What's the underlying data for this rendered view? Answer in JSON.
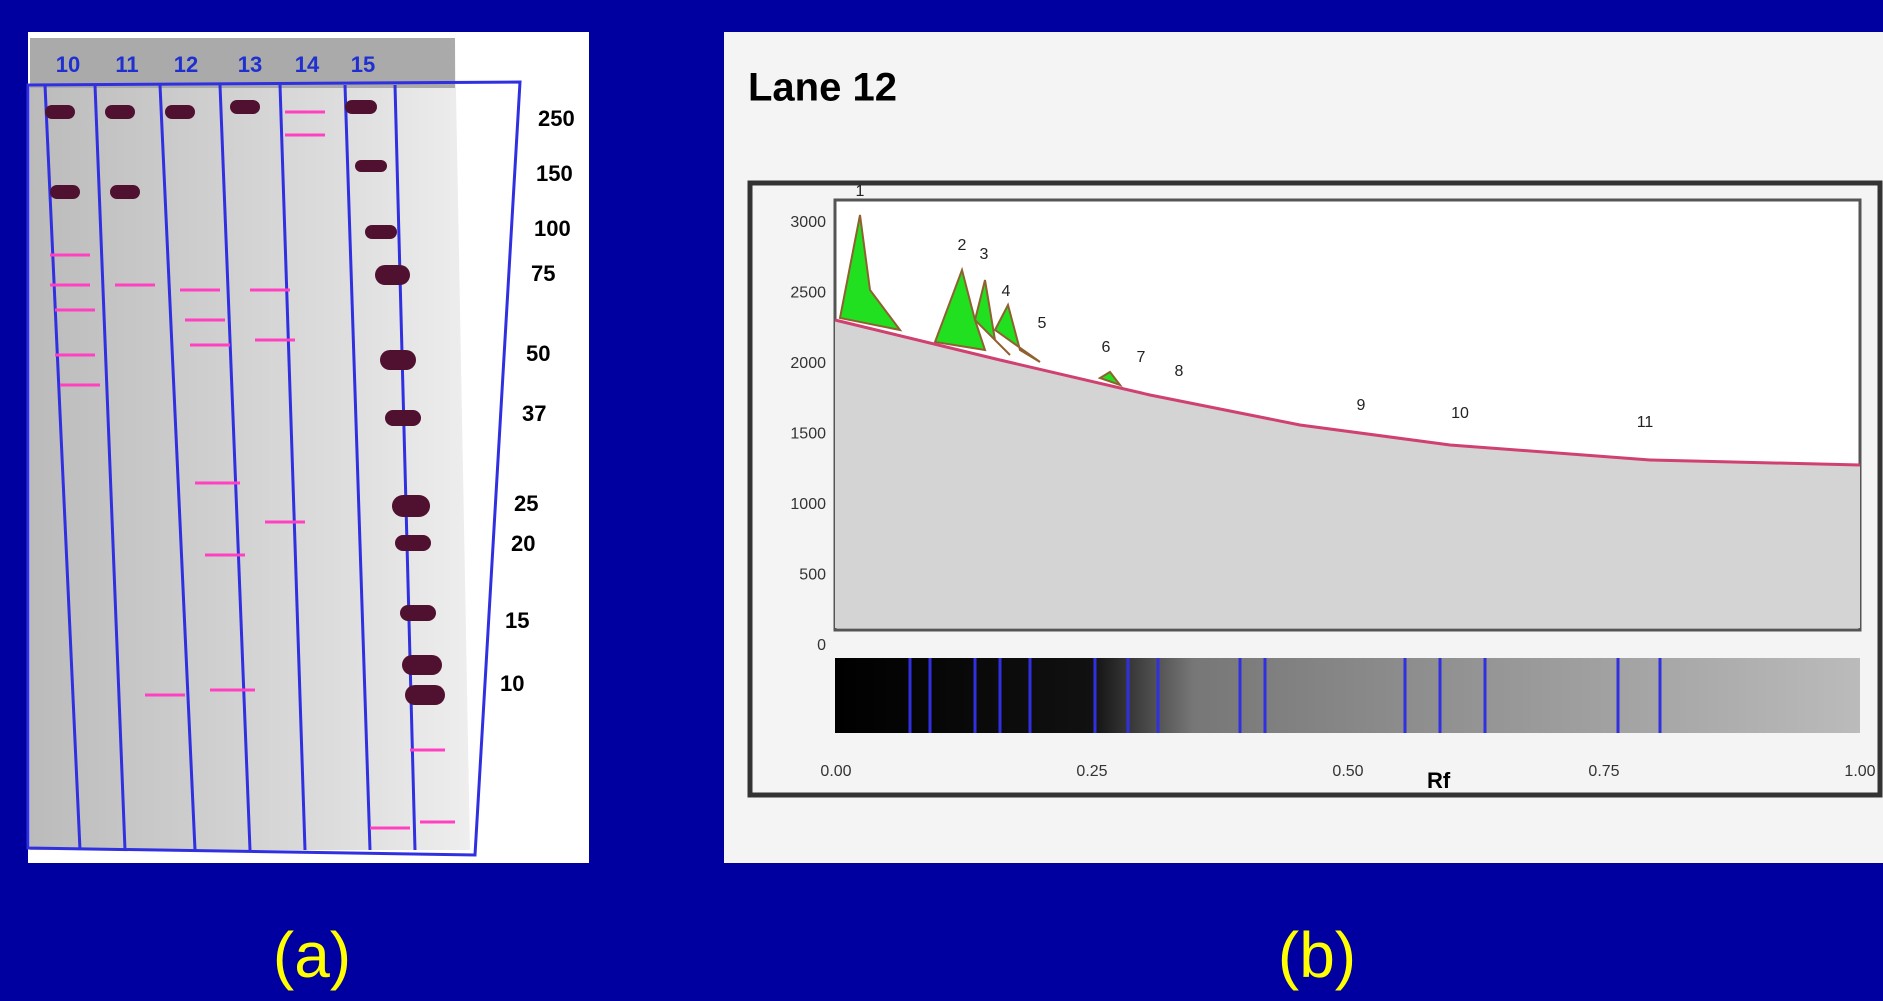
{
  "gel": {
    "lanes": [
      "10",
      "11",
      "12",
      "13",
      "14",
      "15"
    ],
    "markers": [
      "250",
      "150",
      "100",
      "75",
      "50",
      "37",
      "25",
      "20",
      "15",
      "10"
    ]
  },
  "profile": {
    "title": "Lane 12",
    "yticks": [
      "3000",
      "2500",
      "2000",
      "1500",
      "1000",
      "500",
      "0"
    ],
    "xticks": [
      "0.00",
      "0.25",
      "0.50",
      "0.75",
      "1.00"
    ],
    "x_label": "Rf",
    "peaks": [
      "1",
      "2",
      "3",
      "4",
      "5",
      "6",
      "7",
      "8",
      "9",
      "10",
      "11"
    ]
  },
  "captions": [
    "(a)",
    "(b)"
  ]
}
